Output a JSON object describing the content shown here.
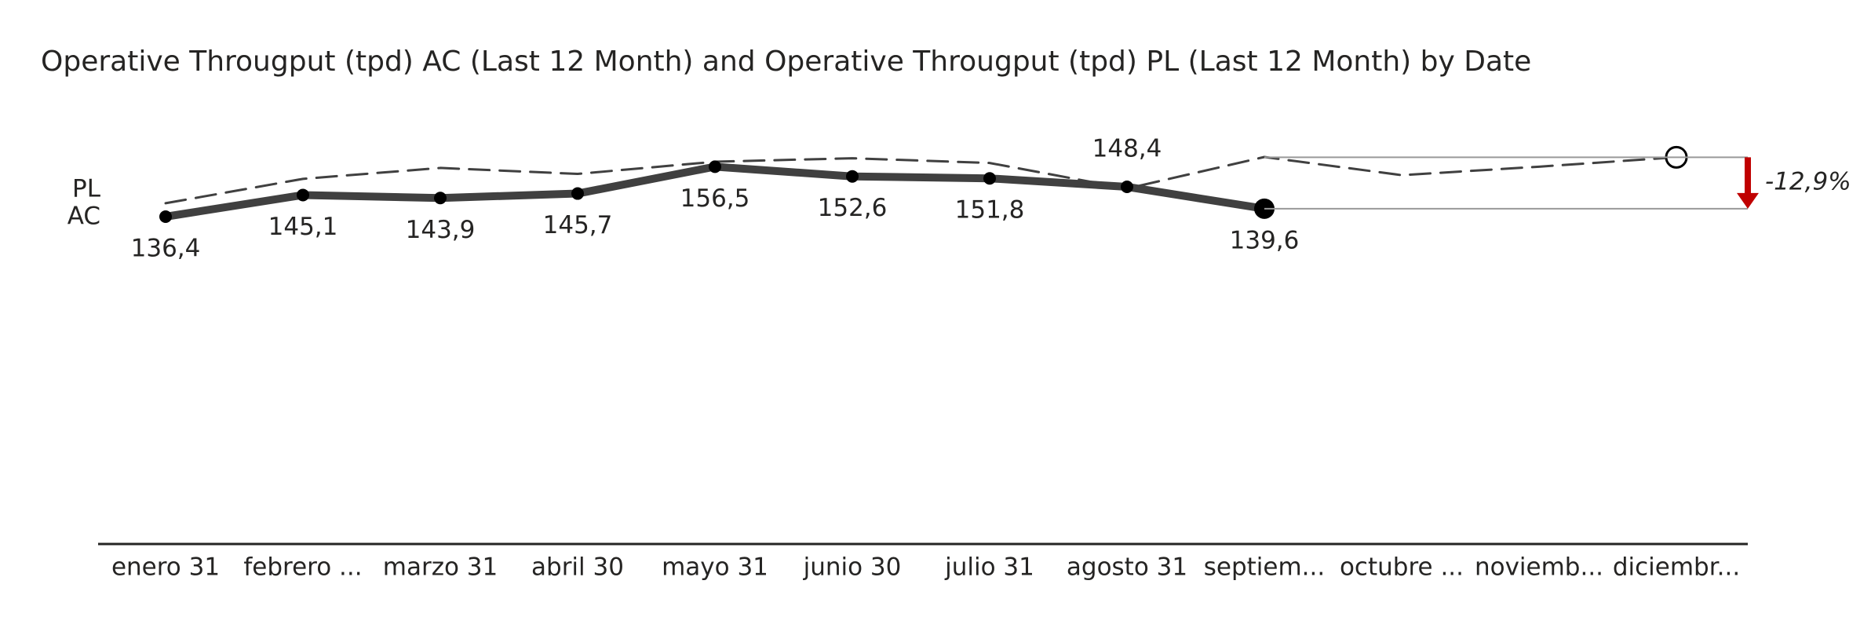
{
  "chart_data": {
    "type": "line",
    "title": "Operative Througput (tpd) AC (Last 12 Month) and Operative Througput (tpd) PL (Last 12 Month) by Date",
    "categories": [
      "enero 31",
      "febrero ...",
      "marzo 31",
      "abril 30",
      "mayo 31",
      "junio 30",
      "julio 31",
      "agosto 31",
      "septiem...",
      "octubre ...",
      "noviemb...",
      "diciembr..."
    ],
    "series": [
      {
        "name": "PL",
        "color": "#404040",
        "style": "dashed",
        "values": [
          141.8,
          151.6,
          156.0,
          153.6,
          158.5,
          159.9,
          158.0,
          147.7,
          160.4,
          153.1,
          156.5,
          160.3
        ]
      },
      {
        "name": "AC",
        "color": "#404040",
        "style": "solid",
        "values": [
          136.4,
          145.1,
          143.9,
          145.7,
          156.5,
          152.6,
          151.8,
          148.4,
          139.6,
          null,
          null,
          null
        ],
        "value_labels": [
          "136,4",
          "145,1",
          "143,9",
          "145,7",
          "156,5",
          "152,6",
          "151,8",
          "148,4",
          "139,6",
          null,
          null,
          null
        ]
      }
    ],
    "annotation": {
      "value": -12.9,
      "label": "-12,9%",
      "color": "#c00000"
    }
  }
}
